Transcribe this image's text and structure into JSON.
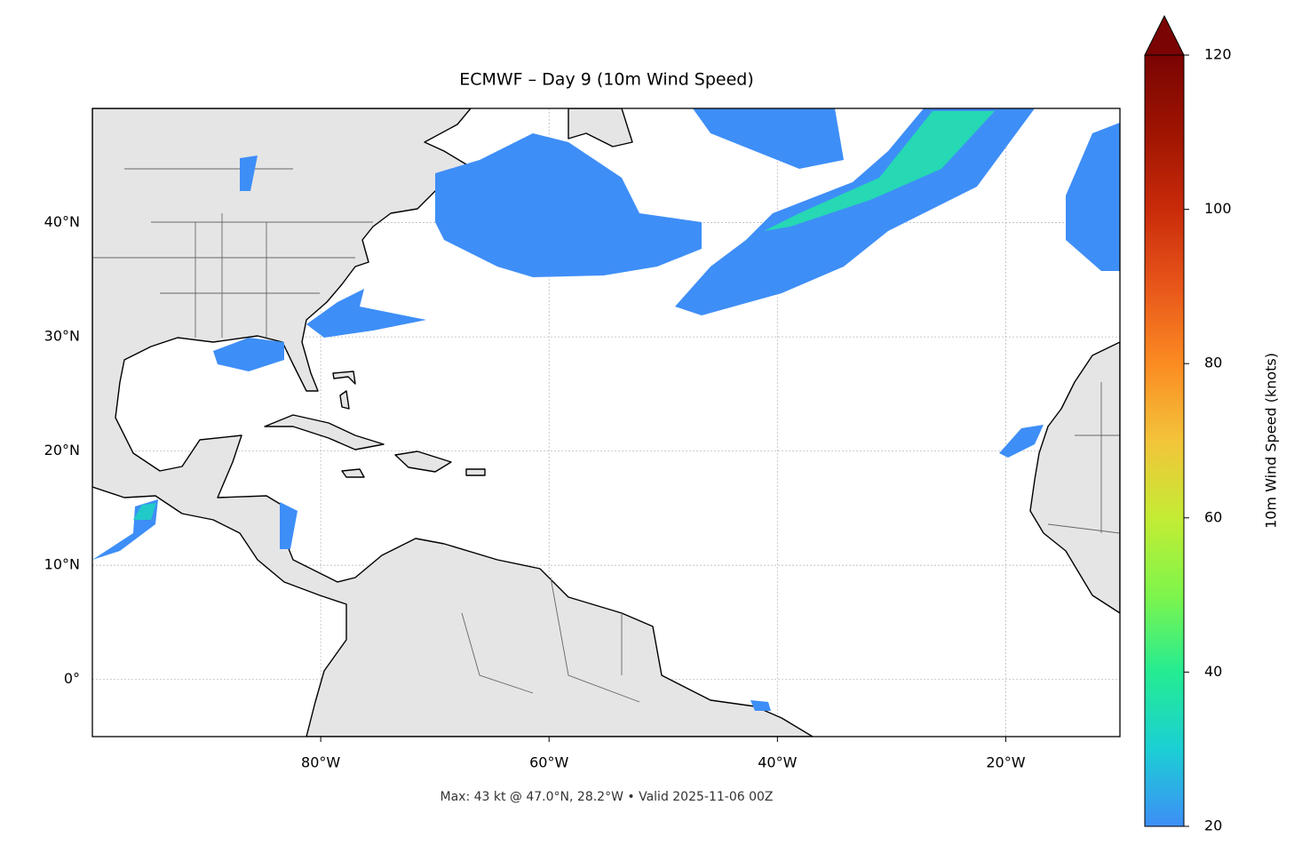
{
  "chart_data": {
    "type": "map",
    "title": "ECMWF – Day 9 (10m Wind Speed)",
    "xlim": [
      -100,
      -10
    ],
    "ylim": [
      -5,
      50
    ],
    "xticks": [
      {
        "value": -80,
        "label": "80°W"
      },
      {
        "value": -60,
        "label": "60°W"
      },
      {
        "value": -40,
        "label": "40°W"
      },
      {
        "value": -20,
        "label": "20°W"
      }
    ],
    "yticks": [
      {
        "value": 0,
        "label": "0°"
      },
      {
        "value": 10,
        "label": "10°N"
      },
      {
        "value": 20,
        "label": "20°N"
      },
      {
        "value": 30,
        "label": "30°N"
      },
      {
        "value": 40,
        "label": "40°N"
      }
    ],
    "grid": true,
    "colorbar": {
      "label": "10m Wind Speed (knots)",
      "lim": [
        20,
        120
      ],
      "ticks": [
        20,
        40,
        60,
        80,
        100,
        120
      ],
      "colors": [
        "#3e8ef7",
        "#1bcfd4",
        "#24ec92",
        "#7ef54b",
        "#c4ec34",
        "#f3c43a",
        "#fb8b22",
        "#e8561a",
        "#c92b0a",
        "#9e1402",
        "#7a0403"
      ],
      "extend": "max"
    },
    "annotation": "Max: 43 kt @ 47.0°N, 28.2°W • Valid 2025-11-06 00Z"
  }
}
